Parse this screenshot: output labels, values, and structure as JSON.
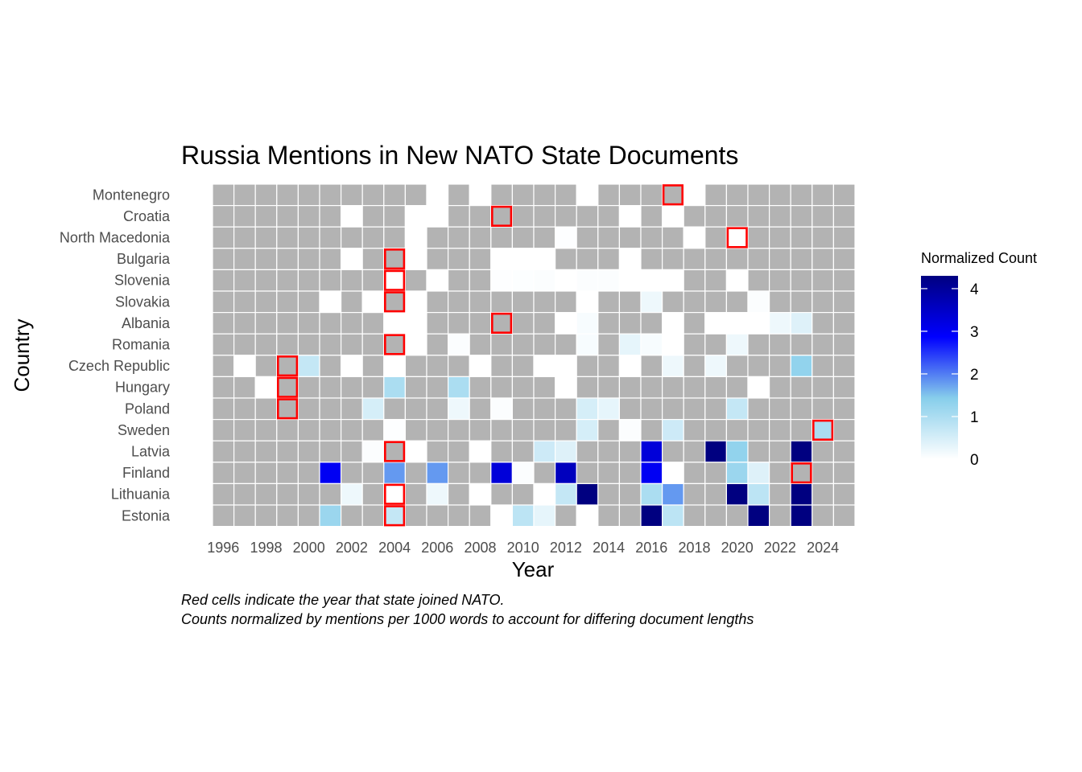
{
  "chart_data": {
    "type": "heatmap",
    "title": "Russia Mentions in New NATO State Documents",
    "xlabel": "Year",
    "ylabel": "Country",
    "x_tick_labels": [
      "1996",
      "1998",
      "2000",
      "2002",
      "2004",
      "2006",
      "2008",
      "2010",
      "2012",
      "2014",
      "2016",
      "2018",
      "2020",
      "2022",
      "2024"
    ],
    "years": [
      1996,
      1997,
      1998,
      1999,
      2000,
      2001,
      2002,
      2003,
      2004,
      2005,
      2006,
      2007,
      2008,
      2009,
      2010,
      2011,
      2012,
      2013,
      2014,
      2015,
      2016,
      2017,
      2018,
      2019,
      2020,
      2021,
      2022,
      2023,
      2024,
      2025
    ],
    "countries": [
      "Montenegro",
      "Croatia",
      "North Macedonia",
      "Bulgaria",
      "Slovenia",
      "Slovakia",
      "Albania",
      "Romania",
      "Czech Republic",
      "Hungary",
      "Poland",
      "Sweden",
      "Latvia",
      "Finland",
      "Lithuania",
      "Estonia"
    ],
    "legend": {
      "title": "Normalized Count",
      "ticks": [
        "0",
        "1",
        "2",
        "3",
        "4"
      ],
      "range": [
        0,
        4.3
      ],
      "colors": [
        "#ffffff",
        "#87ceeb",
        "#0000ff",
        "#000080"
      ],
      "missing_color": "#b3b3b3"
    },
    "highlight_color": "#ff0000",
    "values": [
      [
        null,
        null,
        null,
        null,
        null,
        null,
        null,
        null,
        null,
        null,
        0,
        null,
        0,
        null,
        null,
        null,
        null,
        0,
        null,
        null,
        null,
        null,
        0,
        null,
        null,
        null,
        null,
        null,
        null,
        null
      ],
      [
        null,
        null,
        null,
        null,
        null,
        null,
        0,
        null,
        null,
        0,
        0,
        null,
        null,
        null,
        null,
        null,
        null,
        null,
        null,
        0,
        null,
        0,
        null,
        null,
        null,
        null,
        null,
        null,
        null,
        null
      ],
      [
        null,
        null,
        null,
        null,
        null,
        null,
        null,
        null,
        null,
        0,
        null,
        null,
        null,
        null,
        null,
        null,
        0.02,
        null,
        null,
        null,
        null,
        null,
        0,
        null,
        0,
        null,
        null,
        null,
        null,
        null
      ],
      [
        null,
        null,
        null,
        null,
        null,
        null,
        0,
        null,
        null,
        0,
        null,
        null,
        null,
        0,
        0,
        0,
        null,
        null,
        null,
        0,
        null,
        null,
        null,
        null,
        null,
        null,
        null,
        null,
        null,
        null
      ],
      [
        null,
        null,
        null,
        null,
        null,
        null,
        null,
        null,
        0,
        null,
        0,
        null,
        null,
        0.02,
        0.03,
        0.05,
        0,
        0.05,
        0.05,
        0,
        0,
        0,
        null,
        null,
        0,
        null,
        null,
        null,
        null,
        null
      ],
      [
        null,
        null,
        null,
        null,
        null,
        0,
        null,
        0,
        null,
        0,
        null,
        null,
        null,
        null,
        null,
        null,
        null,
        0,
        null,
        null,
        0.2,
        null,
        null,
        null,
        null,
        0.05,
        null,
        null,
        null,
        null
      ],
      [
        null,
        null,
        null,
        null,
        null,
        null,
        null,
        null,
        0,
        0,
        null,
        null,
        null,
        null,
        null,
        null,
        0,
        0.1,
        null,
        null,
        null,
        0,
        null,
        0,
        0,
        0,
        0.2,
        0.4,
        null,
        null
      ],
      [
        null,
        null,
        null,
        null,
        null,
        null,
        null,
        null,
        null,
        0,
        null,
        0.05,
        null,
        null,
        null,
        null,
        null,
        0.1,
        null,
        0.3,
        0.1,
        0,
        null,
        null,
        0.2,
        null,
        null,
        null,
        null,
        null
      ],
      [
        null,
        0,
        null,
        null,
        0.7,
        null,
        0,
        null,
        0,
        null,
        null,
        null,
        0,
        null,
        null,
        0,
        0,
        null,
        null,
        0,
        null,
        0.2,
        null,
        0.2,
        null,
        null,
        null,
        1.3,
        null,
        null
      ],
      [
        null,
        null,
        0,
        null,
        null,
        null,
        null,
        null,
        1.0,
        null,
        null,
        1.0,
        null,
        null,
        null,
        null,
        0,
        null,
        null,
        null,
        null,
        null,
        null,
        null,
        null,
        0,
        null,
        null,
        null,
        null
      ],
      [
        null,
        null,
        null,
        null,
        null,
        null,
        null,
        0.5,
        null,
        null,
        null,
        0.2,
        null,
        0.05,
        null,
        null,
        null,
        0.5,
        0.3,
        null,
        null,
        null,
        null,
        null,
        0.7,
        null,
        null,
        null,
        null,
        null
      ],
      [
        null,
        null,
        null,
        null,
        null,
        null,
        null,
        null,
        0.02,
        null,
        null,
        null,
        null,
        null,
        null,
        null,
        null,
        0.5,
        null,
        0.05,
        null,
        0.6,
        null,
        null,
        null,
        null,
        null,
        null,
        1.0,
        null
      ],
      [
        null,
        null,
        null,
        null,
        null,
        null,
        null,
        0.05,
        null,
        0,
        null,
        null,
        0,
        null,
        null,
        0.6,
        0.4,
        null,
        null,
        null,
        3.3,
        null,
        null,
        4.3,
        1.3,
        null,
        null,
        4.3,
        null,
        null
      ],
      [
        null,
        null,
        null,
        null,
        null,
        3.0,
        null,
        null,
        1.8,
        null,
        1.8,
        null,
        null,
        3.3,
        0.05,
        null,
        3.6,
        null,
        null,
        null,
        3.0,
        0,
        null,
        null,
        1.2,
        0.4,
        null,
        null,
        null,
        null
      ],
      [
        null,
        null,
        null,
        null,
        null,
        null,
        0.2,
        null,
        0,
        null,
        0.2,
        null,
        0,
        null,
        null,
        0,
        0.7,
        4.3,
        null,
        null,
        1.0,
        1.8,
        null,
        null,
        4.3,
        0.8,
        null,
        4.3,
        null,
        null
      ],
      [
        null,
        null,
        null,
        null,
        null,
        1.2,
        null,
        null,
        0.7,
        null,
        null,
        null,
        null,
        0,
        0.8,
        0.3,
        null,
        0,
        null,
        null,
        4.3,
        0.8,
        null,
        null,
        null,
        4.3,
        null,
        4.3,
        null,
        null
      ]
    ],
    "highlights": [
      {
        "country": "Montenegro",
        "year": 2017
      },
      {
        "country": "Croatia",
        "year": 2009
      },
      {
        "country": "North Macedonia",
        "year": 2020
      },
      {
        "country": "Bulgaria",
        "year": 2004
      },
      {
        "country": "Slovenia",
        "year": 2004
      },
      {
        "country": "Slovakia",
        "year": 2004
      },
      {
        "country": "Albania",
        "year": 2009
      },
      {
        "country": "Romania",
        "year": 2004
      },
      {
        "country": "Czech Republic",
        "year": 1999
      },
      {
        "country": "Hungary",
        "year": 1999
      },
      {
        "country": "Poland",
        "year": 1999
      },
      {
        "country": "Sweden",
        "year": 2024
      },
      {
        "country": "Latvia",
        "year": 2004
      },
      {
        "country": "Finland",
        "year": 2023
      },
      {
        "country": "Lithuania",
        "year": 2004
      },
      {
        "country": "Estonia",
        "year": 2004
      }
    ]
  },
  "caption": {
    "line1": "Red cells indicate the year that state joined NATO.",
    "line2": "Counts normalized by mentions per 1000 words to account for differing document lengths"
  }
}
